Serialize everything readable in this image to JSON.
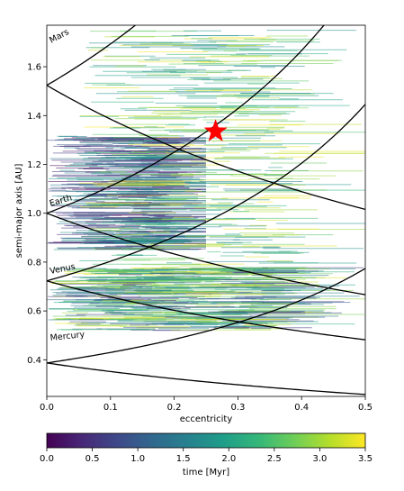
{
  "chart_data": {
    "type": "scatter",
    "xlabel": "eccentricity",
    "ylabel": "semi-major axis [AU]",
    "xlim": [
      0.0,
      0.5
    ],
    "ylim": [
      0.25,
      1.77
    ],
    "x_ticks": [
      0.0,
      0.1,
      0.2,
      0.3,
      0.4,
      0.5
    ],
    "y_ticks": [
      0.4,
      0.6,
      0.8,
      1.0,
      1.2,
      1.4,
      1.6
    ],
    "grid": false,
    "colorbar": {
      "label": "time [Myr]",
      "range": [
        0.0,
        3.5
      ],
      "ticks": [
        0.0,
        0.5,
        1.0,
        1.5,
        2.0,
        2.5,
        3.0,
        3.5
      ],
      "colormap": "viridis",
      "colors": [
        "#440154",
        "#482878",
        "#3e4989",
        "#31688e",
        "#26828e",
        "#1f9e89",
        "#35b779",
        "#6ece58",
        "#b5de2b",
        "#fde725"
      ]
    },
    "planet_curves": [
      {
        "name": "Mercury",
        "a": 0.387,
        "label": "Mercury"
      },
      {
        "name": "Venus",
        "a": 0.723,
        "label": "Venus"
      },
      {
        "name": "Earth",
        "a": 1.0,
        "label": "Earth"
      },
      {
        "name": "Mars",
        "a": 1.524,
        "label": "Mars"
      }
    ],
    "marker": {
      "shape": "star",
      "color": "#ff0000",
      "e": 0.265,
      "a": 1.335
    },
    "scatter_regions": [
      {
        "e": [
          0.0,
          0.5
        ],
        "a": [
          0.52,
          0.78
        ],
        "t": [
          0.5,
          3.5
        ]
      },
      {
        "e": [
          0.0,
          0.25
        ],
        "a": [
          0.85,
          1.32
        ],
        "t": [
          0.0,
          2.0
        ]
      },
      {
        "e": [
          0.05,
          0.5
        ],
        "a": [
          0.7,
          1.75
        ],
        "t": [
          1.5,
          3.5
        ]
      }
    ]
  }
}
